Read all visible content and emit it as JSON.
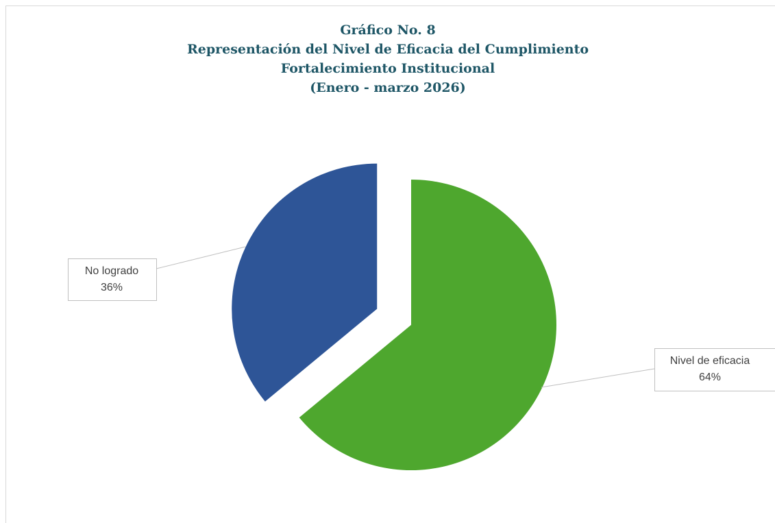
{
  "chart_data": {
    "type": "pie",
    "title": [
      "Gráfico No. 8",
      "Representación del Nivel de Eficacia del Cumplimiento",
      "Fortalecimiento Institucional",
      "(Enero - marzo 2026)"
    ],
    "categories": [
      "Nivel de eficacia",
      "No logrado"
    ],
    "values": [
      64,
      36
    ],
    "value_labels": [
      "64%",
      "36%"
    ],
    "colors": [
      "#4ea72e",
      "#2e5597"
    ],
    "exploded": [
      false,
      true
    ]
  }
}
